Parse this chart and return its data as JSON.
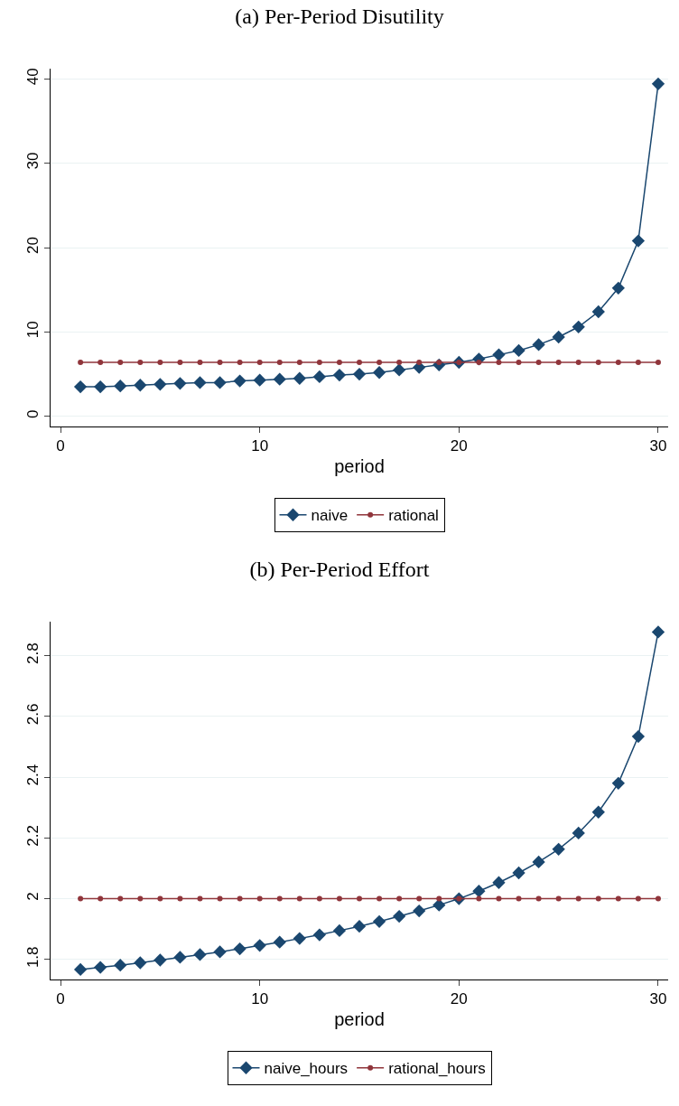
{
  "chart_data": [
    {
      "type": "line",
      "title": "(a) Per-Period Disutility",
      "xlabel": "period",
      "x": [
        1,
        2,
        3,
        4,
        5,
        6,
        7,
        8,
        9,
        10,
        11,
        12,
        13,
        14,
        15,
        16,
        17,
        18,
        19,
        20,
        21,
        22,
        23,
        24,
        25,
        26,
        27,
        28,
        29,
        30
      ],
      "series": [
        {
          "name": "naive",
          "color": "#1a476f",
          "marker": "diamond",
          "values": [
            3.5,
            3.5,
            3.6,
            3.7,
            3.8,
            3.9,
            4.0,
            4.0,
            4.2,
            4.3,
            4.4,
            4.5,
            4.7,
            4.9,
            5.0,
            5.2,
            5.5,
            5.8,
            6.1,
            6.4,
            6.8,
            7.3,
            7.8,
            8.5,
            9.4,
            10.6,
            12.4,
            15.2,
            20.8,
            39.4
          ]
        },
        {
          "name": "rational",
          "color": "#90353b",
          "marker": "circle",
          "values": [
            6.4,
            6.4,
            6.4,
            6.4,
            6.4,
            6.4,
            6.4,
            6.4,
            6.4,
            6.4,
            6.4,
            6.4,
            6.4,
            6.4,
            6.4,
            6.4,
            6.4,
            6.4,
            6.4,
            6.4,
            6.4,
            6.4,
            6.4,
            6.4,
            6.4,
            6.4,
            6.4,
            6.4,
            6.4,
            6.4
          ]
        }
      ],
      "xlim": [
        -0.5,
        30.5
      ],
      "xticks": [
        0,
        10,
        20,
        30
      ],
      "ylim": [
        -1.2,
        41.2
      ],
      "yticks": [
        0,
        10,
        20,
        30,
        40
      ],
      "grid": "y",
      "legend": "bottom"
    },
    {
      "type": "line",
      "title": "(b) Per-Period Effort",
      "xlabel": "period",
      "x": [
        1,
        2,
        3,
        4,
        5,
        6,
        7,
        8,
        9,
        10,
        11,
        12,
        13,
        14,
        15,
        16,
        17,
        18,
        19,
        20,
        21,
        22,
        23,
        24,
        25,
        26,
        27,
        28,
        29,
        30
      ],
      "series": [
        {
          "name": "naive_hours",
          "color": "#1a476f",
          "marker": "diamond",
          "values": [
            1.767,
            1.774,
            1.781,
            1.789,
            1.798,
            1.807,
            1.816,
            1.825,
            1.835,
            1.846,
            1.857,
            1.869,
            1.881,
            1.895,
            1.909,
            1.925,
            1.942,
            1.96,
            1.979,
            2.0,
            2.025,
            2.053,
            2.085,
            2.121,
            2.163,
            2.216,
            2.285,
            2.38,
            2.534,
            2.878
          ]
        },
        {
          "name": "rational_hours",
          "color": "#90353b",
          "marker": "circle",
          "values": [
            2,
            2,
            2,
            2,
            2,
            2,
            2,
            2,
            2,
            2,
            2,
            2,
            2,
            2,
            2,
            2,
            2,
            2,
            2,
            2,
            2,
            2,
            2,
            2,
            2,
            2,
            2,
            2,
            2,
            2
          ]
        }
      ],
      "xlim": [
        -0.5,
        30.5
      ],
      "xticks": [
        0,
        10,
        20,
        30
      ],
      "ylim": [
        1.734,
        2.912
      ],
      "yticks": [
        1.8,
        2,
        2.2,
        2.4,
        2.6,
        2.8
      ],
      "grid": "y",
      "legend": "bottom"
    }
  ]
}
